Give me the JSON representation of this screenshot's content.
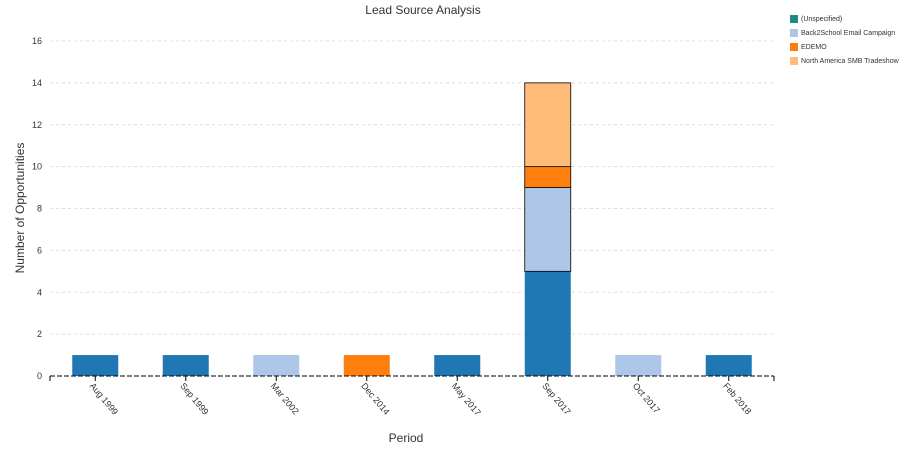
{
  "chart_data": {
    "type": "bar",
    "stacked": true,
    "title": "Lead Source Analysis",
    "xlabel": "Period",
    "ylabel": "Number of Opportunities",
    "ylim": [
      0,
      16
    ],
    "yticks": [
      0,
      2,
      4,
      6,
      8,
      10,
      12,
      14,
      16
    ],
    "grid": true,
    "legend_position": "top-right",
    "categories": [
      "Aug 1999",
      "Sep 1999",
      "Mar 2002",
      "Dec 2014",
      "May 2017",
      "Sep 2017",
      "Oct 2017",
      "Feb 2018"
    ],
    "series": [
      {
        "name": "(Unspecified)",
        "color": "#1f77b4",
        "legend_color": "#1a8a8a",
        "values": [
          1,
          1,
          0,
          0,
          1,
          5,
          0,
          1
        ]
      },
      {
        "name": "Back2School Email Campaign",
        "color": "#aec7e8",
        "values": [
          0,
          0,
          1,
          0,
          0,
          4,
          1,
          0
        ]
      },
      {
        "name": "EDEMO",
        "color": "#ff7f0e",
        "values": [
          0,
          0,
          0,
          1,
          0,
          1,
          0,
          0
        ]
      },
      {
        "name": "North America SMB Tradeshow",
        "color": "#ffbb78",
        "values": [
          0,
          0,
          0,
          0,
          0,
          4,
          0,
          0
        ]
      }
    ]
  }
}
